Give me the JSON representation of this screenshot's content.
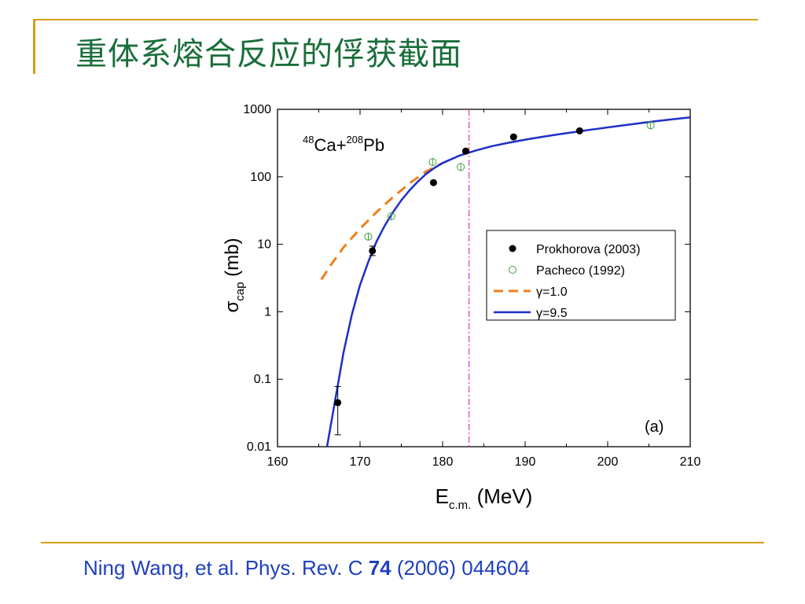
{
  "slide": {
    "title": "重体系熔合反应的俘获截面",
    "citation_prefix": "Ning Wang, et al. Phys. Rev. C ",
    "citation_volume": "74",
    "citation_suffix": " (2006) 044604",
    "colors": {
      "title": "#1a6e3a",
      "accent_lines": "#d4a017",
      "citation": "#1f3fbf"
    }
  },
  "chart_data": {
    "type": "scatter",
    "x_scale": "linear",
    "y_scale": "log",
    "xlim": [
      160,
      210
    ],
    "ylim": [
      0.01,
      1000
    ],
    "x_ticks": [
      "160",
      "170",
      "180",
      "190",
      "200",
      "210"
    ],
    "y_ticks": [
      "0.01",
      "0.1",
      "1",
      "10",
      "100",
      "1000"
    ],
    "xlabel": {
      "main": "E",
      "sub": "c.m.",
      "rest": " (MeV)"
    },
    "ylabel": {
      "main": "σ",
      "sub": "cap",
      "rest": " (mb)"
    },
    "annotation_reaction": {
      "sup1": "48",
      "el1": "Ca+",
      "sup2": "208",
      "el2": "Pb"
    },
    "panel_label": "(a)",
    "vertical_line": {
      "x": 183.2,
      "color": "#e040c0",
      "style": "dash-dot"
    },
    "legend_position": "center-right",
    "series": [
      {
        "name": "Prokhorova (2003)",
        "kind": "filled-circle",
        "color": "#000000",
        "points": [
          {
            "x": 167.3,
            "y": 0.045,
            "err_lo": 0.015,
            "err_hi": 0.078
          },
          {
            "x": 171.5,
            "y": 8.0,
            "err_lo": 6.8,
            "err_hi": 9.4
          },
          {
            "x": 178.9,
            "y": 82
          },
          {
            "x": 182.8,
            "y": 240
          },
          {
            "x": 188.6,
            "y": 390
          },
          {
            "x": 196.6,
            "y": 480
          }
        ]
      },
      {
        "name": "Pacheco (1992)",
        "kind": "open-circle",
        "color": "#3fa03f",
        "points": [
          {
            "x": 171.0,
            "y": 13
          },
          {
            "x": 173.8,
            "y": 26
          },
          {
            "x": 178.8,
            "y": 165
          },
          {
            "x": 182.2,
            "y": 140
          },
          {
            "x": 205.2,
            "y": 580
          }
        ]
      },
      {
        "name": "γ=1.0",
        "kind": "dashed-line",
        "color": "#f07f1a",
        "points": [
          {
            "x": 165.3,
            "y": 3.0
          },
          {
            "x": 166.5,
            "y": 5.0
          },
          {
            "x": 168.0,
            "y": 9.0
          },
          {
            "x": 170.0,
            "y": 17
          },
          {
            "x": 172.0,
            "y": 30
          },
          {
            "x": 174.0,
            "y": 50
          },
          {
            "x": 176.0,
            "y": 80
          },
          {
            "x": 178.0,
            "y": 120
          },
          {
            "x": 180.0,
            "y": 160
          }
        ]
      },
      {
        "name": "γ=9.5",
        "kind": "solid-line",
        "color": "#1f2fc8",
        "points": [
          {
            "x": 166.0,
            "y": 0.01
          },
          {
            "x": 167.0,
            "y": 0.05
          },
          {
            "x": 168.0,
            "y": 0.25
          },
          {
            "x": 169.0,
            "y": 0.9
          },
          {
            "x": 170.0,
            "y": 2.5
          },
          {
            "x": 171.0,
            "y": 5.5
          },
          {
            "x": 172.0,
            "y": 11
          },
          {
            "x": 173.0,
            "y": 19
          },
          {
            "x": 174.0,
            "y": 30
          },
          {
            "x": 175.0,
            "y": 45
          },
          {
            "x": 176.0,
            "y": 63
          },
          {
            "x": 177.0,
            "y": 85
          },
          {
            "x": 178.0,
            "y": 110
          },
          {
            "x": 179.0,
            "y": 135
          },
          {
            "x": 180.0,
            "y": 160
          },
          {
            "x": 182.0,
            "y": 205
          },
          {
            "x": 184.0,
            "y": 245
          },
          {
            "x": 186.0,
            "y": 285
          },
          {
            "x": 188.0,
            "y": 320
          },
          {
            "x": 190.0,
            "y": 355
          },
          {
            "x": 192.0,
            "y": 390
          },
          {
            "x": 194.0,
            "y": 425
          },
          {
            "x": 196.0,
            "y": 460
          },
          {
            "x": 198.0,
            "y": 500
          },
          {
            "x": 200.0,
            "y": 540
          },
          {
            "x": 202.0,
            "y": 580
          },
          {
            "x": 204.0,
            "y": 625
          },
          {
            "x": 206.0,
            "y": 670
          },
          {
            "x": 208.0,
            "y": 715
          },
          {
            "x": 210.0,
            "y": 760
          }
        ]
      }
    ]
  }
}
